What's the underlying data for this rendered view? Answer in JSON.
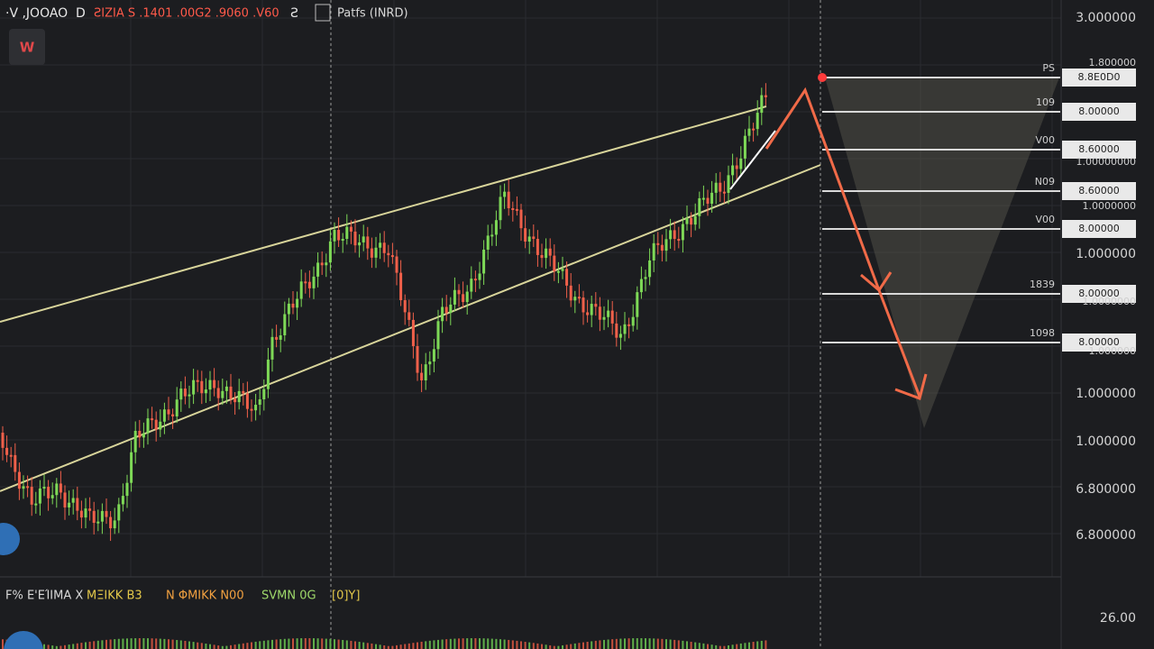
{
  "toolbar": {
    "symbol": "·V ,JOOAO",
    "interval": "D",
    "ohlc": "ƧIZIA S .1401 .00G2 .9060 .V60",
    "icon": "Ƨ",
    "indicator": "Patfs (INRD)",
    "badge": "W"
  },
  "price_axis": [
    "3.000000",
    "1.800000",
    "1.00000000",
    "1.0000000",
    "1.000000",
    "1.0000000",
    "1.000000",
    "1.000000",
    "1.000000",
    "6.800000",
    "6.800000",
    "26.00"
  ],
  "levels": [
    {
      "tag": "PS",
      "price": "8.8E0D0"
    },
    {
      "tag": "109",
      "price": "8.00000"
    },
    {
      "tag": "V00",
      "price": "8.60000"
    },
    {
      "tag": "N09",
      "price": "8.60000"
    },
    {
      "tag": "V00",
      "price": "8.00000"
    },
    {
      "tag": "1839",
      "price": "8.00000"
    },
    {
      "tag": "1098",
      "price": "8.00000"
    }
  ],
  "legend": [
    "F% Ε'ΕΊΙΜΑ X",
    "ΜΞΙΚΚ Β3",
    "Ν ΦΜΙΚΚ Ν00",
    "SVMN 0G",
    "[0]Y]"
  ]
}
